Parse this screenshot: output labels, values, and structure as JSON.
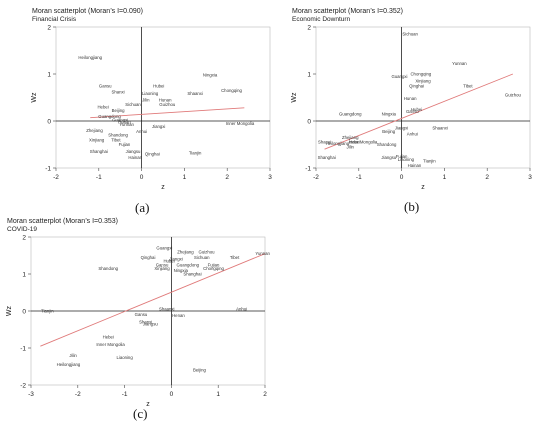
{
  "chart_data": [
    {
      "type": "scatter",
      "title": "Moran scatterplot (Moran’s I=0.090)",
      "subtitle": "Financial Crisis",
      "xlabel": "z",
      "ylabel": "Wz",
      "xlim": [
        -2,
        3
      ],
      "ylim": [
        -1,
        2
      ],
      "xticks": [
        -2,
        -1,
        0,
        1,
        2,
        3
      ],
      "yticks": [
        -1,
        0,
        1,
        2
      ],
      "caption": "(a)",
      "fit": {
        "x": [
          -1.2,
          2.4
        ],
        "y": [
          0.07,
          0.28
        ]
      },
      "points": [
        {
          "label": "Heilongjiang",
          "x": -1.2,
          "y": 1.35
        },
        {
          "label": "Gansu",
          "x": -0.85,
          "y": 0.75
        },
        {
          "label": "Shanxi",
          "x": -0.55,
          "y": 0.62
        },
        {
          "label": "Hebei",
          "x": -0.9,
          "y": 0.3
        },
        {
          "label": "Beijing",
          "x": -0.55,
          "y": 0.22
        },
        {
          "label": "Guangdong",
          "x": -0.75,
          "y": 0.1
        },
        {
          "label": "Guangxi",
          "x": -0.5,
          "y": 0.02
        },
        {
          "label": "Henan",
          "x": -0.4,
          "y": -0.02
        },
        {
          "label": "Yunnan",
          "x": -0.35,
          "y": -0.07
        },
        {
          "label": "Zhejiang",
          "x": -1.1,
          "y": -0.2
        },
        {
          "label": "Shandong",
          "x": -0.55,
          "y": -0.3
        },
        {
          "label": "Xinjiang",
          "x": -1.05,
          "y": -0.4
        },
        {
          "label": "Tibet",
          "x": -0.6,
          "y": -0.4
        },
        {
          "label": "Fujian",
          "x": -0.4,
          "y": -0.5
        },
        {
          "label": "Shanghai",
          "x": -1.0,
          "y": -0.65
        },
        {
          "label": "Jiangsu",
          "x": -0.2,
          "y": -0.65
        },
        {
          "label": "Hainan",
          "x": -0.15,
          "y": -0.78
        },
        {
          "label": "Qinghai",
          "x": 0.25,
          "y": -0.7
        },
        {
          "label": "Anhui",
          "x": 0.0,
          "y": -0.22
        },
        {
          "label": "Jiangxi",
          "x": 0.4,
          "y": -0.12
        },
        {
          "label": "Sichuan",
          "x": -0.2,
          "y": 0.35
        },
        {
          "label": "Jilin",
          "x": 0.1,
          "y": 0.45
        },
        {
          "label": "Liaoning",
          "x": 0.2,
          "y": 0.58
        },
        {
          "label": "Hubei",
          "x": 0.4,
          "y": 0.75
        },
        {
          "label": "Hunan",
          "x": 0.55,
          "y": 0.45
        },
        {
          "label": "Guizhou",
          "x": 0.6,
          "y": 0.35
        },
        {
          "label": "Shaanxi",
          "x": 1.25,
          "y": 0.58
        },
        {
          "label": "Ningxia",
          "x": 1.6,
          "y": 0.98
        },
        {
          "label": "Chongqing",
          "x": 2.1,
          "y": 0.65
        },
        {
          "label": "Inner Mongolia",
          "x": 2.3,
          "y": -0.05
        },
        {
          "label": "Tianjin",
          "x": 1.25,
          "y": -0.68
        }
      ]
    },
    {
      "type": "scatter",
      "title": "Moran scatterplot (Moran’s I=0.352)",
      "subtitle": "Economic Downturn",
      "xlabel": "z",
      "ylabel": "Wz",
      "xlim": [
        -2,
        3
      ],
      "ylim": [
        -1,
        2
      ],
      "xticks": [
        -2,
        -1,
        0,
        1,
        2,
        3
      ],
      "yticks": [
        -1,
        0,
        1,
        2
      ],
      "caption": "(b)",
      "fit": {
        "x": [
          -1.8,
          2.6
        ],
        "y": [
          -0.6,
          1.0
        ]
      },
      "points": [
        {
          "label": "Sichuan",
          "x": 0.2,
          "y": 1.85
        },
        {
          "label": "Yunnan",
          "x": 1.35,
          "y": 1.22
        },
        {
          "label": "Guangxi",
          "x": -0.05,
          "y": 0.95
        },
        {
          "label": "Chongqing",
          "x": 0.45,
          "y": 1.0
        },
        {
          "label": "Xinjiang",
          "x": 0.5,
          "y": 0.85
        },
        {
          "label": "Qinghai",
          "x": 0.35,
          "y": 0.75
        },
        {
          "label": "Tibet",
          "x": 1.55,
          "y": 0.75
        },
        {
          "label": "Guizhou",
          "x": 2.6,
          "y": 0.55
        },
        {
          "label": "Hunan",
          "x": 0.2,
          "y": 0.48
        },
        {
          "label": "Hubei",
          "x": 0.35,
          "y": 0.25
        },
        {
          "label": "Gansu",
          "x": 0.25,
          "y": 0.2
        },
        {
          "label": "Guangdong",
          "x": -1.2,
          "y": 0.15
        },
        {
          "label": "Ningxia",
          "x": -0.3,
          "y": 0.15
        },
        {
          "label": "Jiangxi",
          "x": 0.0,
          "y": -0.15
        },
        {
          "label": "Beijing",
          "x": -0.3,
          "y": -0.22
        },
        {
          "label": "Anhui",
          "x": 0.25,
          "y": -0.28
        },
        {
          "label": "Shaanxi",
          "x": 0.9,
          "y": -0.15
        },
        {
          "label": "Shanxi",
          "x": -1.8,
          "y": -0.45
        },
        {
          "label": "Heilongjiang",
          "x": -1.5,
          "y": -0.48
        },
        {
          "label": "Zhejiang",
          "x": -1.2,
          "y": -0.35
        },
        {
          "label": "Hebei",
          "x": -1.1,
          "y": -0.45
        },
        {
          "label": "Inner Mongolia",
          "x": -0.9,
          "y": -0.45
        },
        {
          "label": "Jilin",
          "x": -1.2,
          "y": -0.55
        },
        {
          "label": "Shandong",
          "x": -0.35,
          "y": -0.5
        },
        {
          "label": "Shanghai",
          "x": -1.75,
          "y": -0.78
        },
        {
          "label": "Jiangsu",
          "x": -0.3,
          "y": -0.78
        },
        {
          "label": "Fujian",
          "x": 0.0,
          "y": -0.75
        },
        {
          "label": "Liaoning",
          "x": 0.1,
          "y": -0.82
        },
        {
          "label": "Tianjin",
          "x": 0.65,
          "y": -0.85
        },
        {
          "label": "Hainan",
          "x": 0.3,
          "y": -0.95
        }
      ]
    },
    {
      "type": "scatter",
      "title": "Moran scatterplot (Moran’s I=0.353)",
      "subtitle": "COVID-19",
      "xlabel": "z",
      "ylabel": "Wz",
      "xlim": [
        -3,
        2
      ],
      "ylim": [
        -2,
        2
      ],
      "xticks": [
        -3,
        -2,
        -1,
        0,
        1,
        2
      ],
      "yticks": [
        -2,
        -1,
        0,
        1,
        2
      ],
      "caption": "(c)",
      "fit": {
        "x": [
          -2.8,
          2.0
        ],
        "y": [
          -0.95,
          1.55
        ]
      },
      "points": [
        {
          "label": "Guangxi",
          "x": -0.15,
          "y": 1.7
        },
        {
          "label": "Zhejiang",
          "x": 0.3,
          "y": 1.6
        },
        {
          "label": "Guizhou",
          "x": 0.75,
          "y": 1.6
        },
        {
          "label": "Yunnan",
          "x": 1.95,
          "y": 1.55
        },
        {
          "label": "Qinghai",
          "x": -0.5,
          "y": 1.45
        },
        {
          "label": "Sichuan",
          "x": 0.65,
          "y": 1.45
        },
        {
          "label": "Tibet",
          "x": 1.35,
          "y": 1.45
        },
        {
          "label": "Hubei",
          "x": -0.05,
          "y": 1.35
        },
        {
          "label": "Jiangxi",
          "x": 0.1,
          "y": 1.4
        },
        {
          "label": "Guangdong",
          "x": 0.35,
          "y": 1.25
        },
        {
          "label": "Gansu",
          "x": -0.2,
          "y": 1.25
        },
        {
          "label": "Xinjiang",
          "x": -0.2,
          "y": 1.15
        },
        {
          "label": "Ningxia",
          "x": 0.2,
          "y": 1.1
        },
        {
          "label": "Fujian",
          "x": 0.9,
          "y": 1.25
        },
        {
          "label": "Chongqing",
          "x": 0.9,
          "y": 1.15
        },
        {
          "label": "Shanghai",
          "x": 0.45,
          "y": 1.0
        },
        {
          "label": "Shandong",
          "x": -1.35,
          "y": 1.15
        },
        {
          "label": "Shaanxi",
          "x": -0.1,
          "y": 0.05
        },
        {
          "label": "Anhui",
          "x": 1.5,
          "y": 0.05
        },
        {
          "label": "Tianjin",
          "x": -2.65,
          "y": 0.0
        },
        {
          "label": "Gansu",
          "x": -0.65,
          "y": -0.1
        },
        {
          "label": "Henan",
          "x": 0.15,
          "y": -0.12
        },
        {
          "label": "Shanxi",
          "x": -0.55,
          "y": -0.3
        },
        {
          "label": "Jiangsu",
          "x": -0.45,
          "y": -0.35
        },
        {
          "label": "Hebei",
          "x": -1.35,
          "y": -0.7
        },
        {
          "label": "Inner Mongolia",
          "x": -1.3,
          "y": -0.9
        },
        {
          "label": "Liaoning",
          "x": -1.0,
          "y": -1.25
        },
        {
          "label": "Jilin",
          "x": -2.1,
          "y": -1.2
        },
        {
          "label": "Heilongjiang",
          "x": -2.2,
          "y": -1.45
        },
        {
          "label": "Beijing",
          "x": 0.6,
          "y": -1.6
        }
      ]
    }
  ]
}
